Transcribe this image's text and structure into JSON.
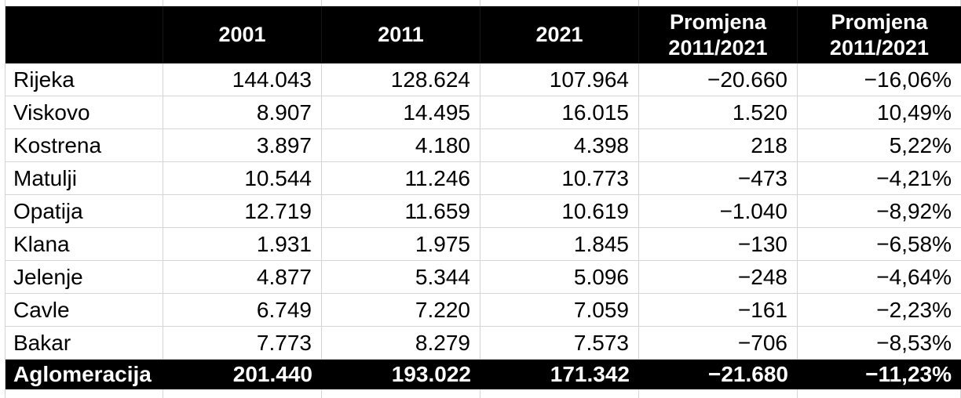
{
  "colors": {
    "header_bg": "#000000",
    "header_text": "#ffffff",
    "gridline": "#d4d4d4",
    "row_bg": "#ffffff",
    "text": "#000000"
  },
  "table": {
    "columns": [
      {
        "label": ""
      },
      {
        "label": "2001"
      },
      {
        "label": "2011"
      },
      {
        "label": "2021"
      },
      {
        "label": "Promjena 2011/2021"
      },
      {
        "label": "Promjena 2011/2021"
      }
    ],
    "rows": [
      {
        "name": "Rijeka",
        "values": [
          "144.043",
          "128.624",
          "107.964",
          "−20.660",
          "−16,06%"
        ]
      },
      {
        "name": "Viskovo",
        "values": [
          "8.907",
          "14.495",
          "16.015",
          "1.520",
          "10,49%"
        ]
      },
      {
        "name": "Kostrena",
        "values": [
          "3.897",
          "4.180",
          "4.398",
          "218",
          "5,22%"
        ]
      },
      {
        "name": "Matulji",
        "values": [
          "10.544",
          "11.246",
          "10.773",
          "−473",
          "−4,21%"
        ]
      },
      {
        "name": "Opatija",
        "values": [
          "12.719",
          "11.659",
          "10.619",
          "−1.040",
          "−8,92%"
        ]
      },
      {
        "name": "Klana",
        "values": [
          "1.931",
          "1.975",
          "1.845",
          "−130",
          "−6,58%"
        ]
      },
      {
        "name": "Jelenje",
        "values": [
          "4.877",
          "5.344",
          "5.096",
          "−248",
          "−4,64%"
        ]
      },
      {
        "name": "Cavle",
        "values": [
          "6.749",
          "7.220",
          "7.059",
          "−161",
          "−2,23%"
        ]
      },
      {
        "name": "Bakar",
        "values": [
          "7.773",
          "8.279",
          "7.573",
          "−706",
          "−8,53%"
        ]
      }
    ],
    "total_row": {
      "name": "Aglomeracija",
      "values": [
        "201.440",
        "193.022",
        "171.342",
        "−21.680",
        "−11,23%"
      ]
    }
  }
}
